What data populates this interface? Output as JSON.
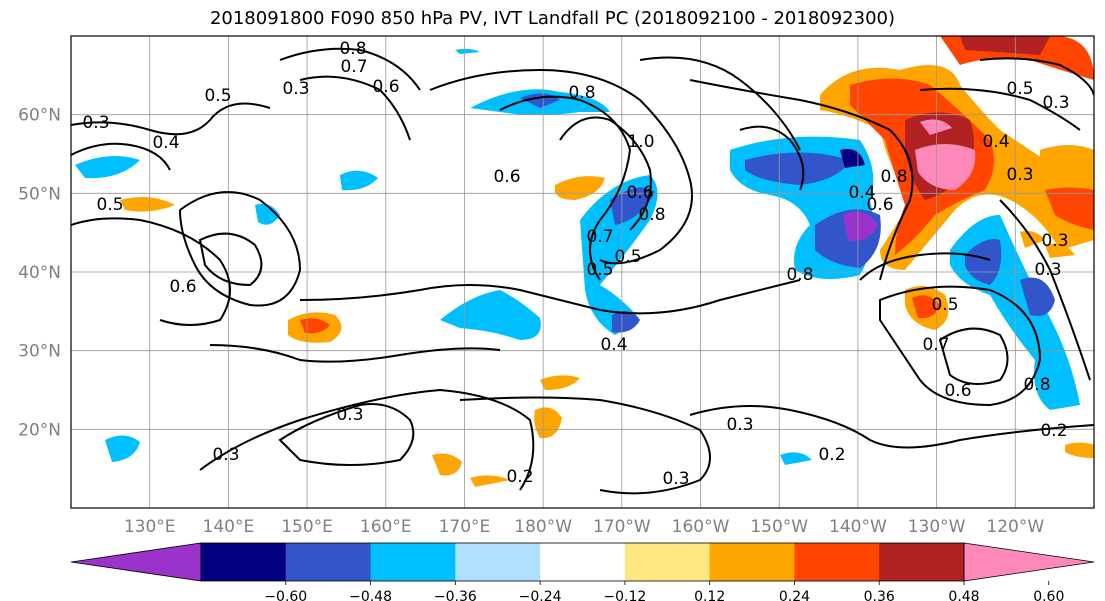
{
  "chart_data": {
    "type": "heatmap",
    "title": "2018091800 F090 850 hPa PV, IVT Landfall PC (2018092100 - 2018092300)",
    "x_ticks": [
      "130°E",
      "140°E",
      "150°E",
      "160°E",
      "170°E",
      "180°W",
      "170°W",
      "160°W",
      "150°W",
      "140°W",
      "130°W",
      "120°W"
    ],
    "y_ticks": [
      "20°N",
      "30°N",
      "40°N",
      "50°N",
      "60°N"
    ],
    "x_range_deg_east": [
      120,
      250
    ],
    "y_range_deg_north": [
      10,
      70
    ],
    "grid": true,
    "colorbar": {
      "position": "bottom",
      "extend": "both",
      "levels": [
        -0.6,
        -0.48,
        -0.36,
        -0.24,
        -0.12,
        0.12,
        0.24,
        0.36,
        0.48,
        0.6
      ],
      "tick_labels": [
        "−0.60",
        "−0.48",
        "−0.36",
        "−0.24",
        "−0.12",
        "0.12",
        "0.24",
        "0.36",
        "0.48",
        "0.60"
      ],
      "colors": [
        "#9933cc",
        "#000080",
        "#3355cc",
        "#00bfff",
        "#b0e0ff",
        "#ffffff",
        "#ffe680",
        "#ffa500",
        "#ff4500",
        "#b22222",
        "#ff88bb"
      ]
    },
    "contour_labels": [
      "0.8",
      "0.7",
      "0.6",
      "0.5",
      "0.3",
      "0.4",
      "0.5",
      "0.3",
      "0.6",
      "0.8",
      "1.0",
      "0.6",
      "0.8",
      "0.7",
      "0.5",
      "0.6",
      "0.8",
      "0.5",
      "0.4",
      "0.4",
      "0.3",
      "0.6",
      "0.8",
      "0.7",
      "0.3",
      "0.3",
      "0.3",
      "0.2",
      "0.3",
      "0.3",
      "0.2",
      "0.3",
      "0.2",
      "0.5",
      "0.4",
      "0.3",
      "0.8",
      "0.6",
      "0.5"
    ]
  }
}
